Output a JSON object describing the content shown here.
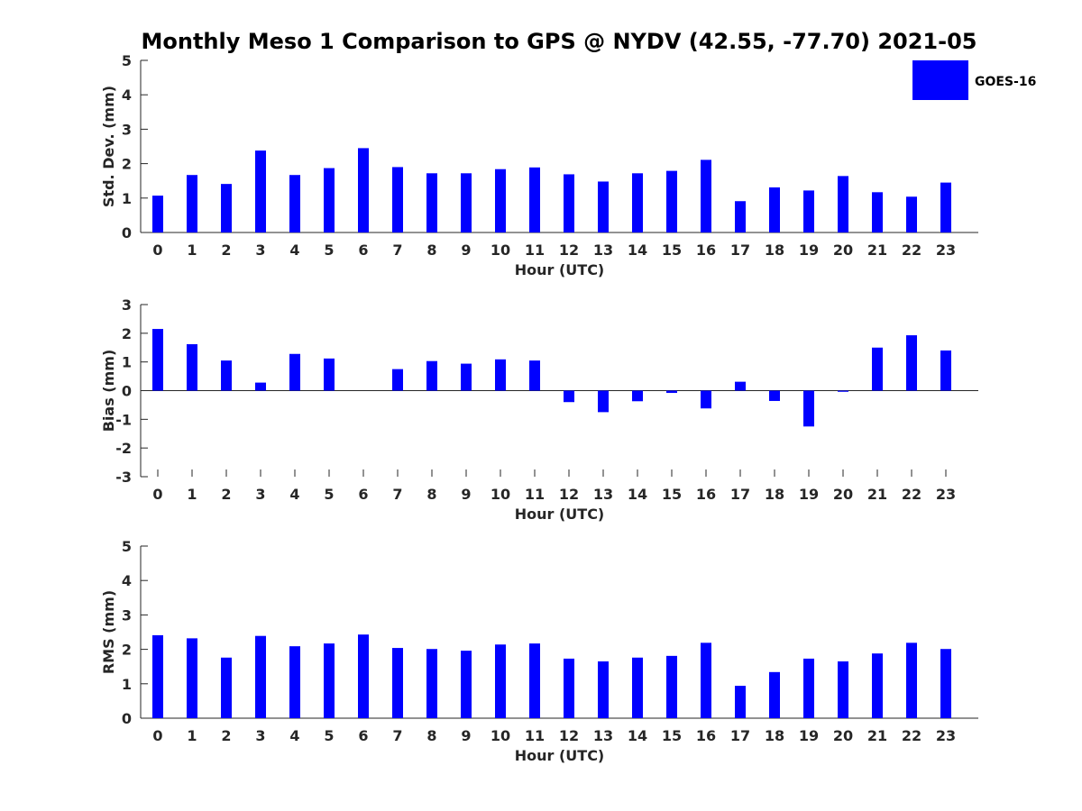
{
  "title": "Monthly Meso 1 Comparison to GPS @ NYDV (42.55, -77.70) 2021-05",
  "legend": {
    "label": "GOES-16",
    "color": "#0000ff"
  },
  "chart_data": [
    {
      "type": "bar",
      "xlabel": "Hour (UTC)",
      "ylabel": "Std. Dev. (mm)",
      "ylim": [
        0,
        5
      ],
      "yticks": [
        0,
        1,
        2,
        3,
        4,
        5
      ],
      "categories": [
        "0",
        "1",
        "2",
        "3",
        "4",
        "5",
        "6",
        "7",
        "8",
        "9",
        "10",
        "11",
        "12",
        "13",
        "14",
        "15",
        "16",
        "17",
        "18",
        "19",
        "20",
        "21",
        "22",
        "23"
      ],
      "series": [
        {
          "name": "GOES-16",
          "color": "#0000ff",
          "values": [
            1.07,
            1.67,
            1.41,
            2.38,
            1.67,
            1.87,
            2.45,
            1.9,
            1.72,
            1.72,
            1.84,
            1.89,
            1.69,
            1.48,
            1.72,
            1.79,
            2.11,
            0.91,
            1.31,
            1.22,
            1.64,
            1.17,
            1.04,
            1.45
          ]
        }
      ]
    },
    {
      "type": "bar",
      "xlabel": "Hour (UTC)",
      "ylabel": "Bias (mm)",
      "ylim": [
        -3,
        3
      ],
      "yticks": [
        -3,
        -2,
        -1,
        0,
        1,
        2,
        3
      ],
      "categories": [
        "0",
        "1",
        "2",
        "3",
        "4",
        "5",
        "6",
        "7",
        "8",
        "9",
        "10",
        "11",
        "12",
        "13",
        "14",
        "15",
        "16",
        "17",
        "18",
        "19",
        "20",
        "21",
        "22",
        "23"
      ],
      "series": [
        {
          "name": "GOES-16",
          "color": "#0000ff",
          "values": [
            2.15,
            1.62,
            1.05,
            0.28,
            1.28,
            1.12,
            0.0,
            0.75,
            1.03,
            0.94,
            1.09,
            1.05,
            -0.4,
            -0.75,
            -0.37,
            -0.08,
            -0.62,
            0.31,
            -0.36,
            -1.25,
            -0.04,
            1.5,
            1.93,
            1.4
          ]
        }
      ]
    },
    {
      "type": "bar",
      "xlabel": "Hour (UTC)",
      "ylabel": "RMS (mm)",
      "ylim": [
        0,
        5
      ],
      "yticks": [
        0,
        1,
        2,
        3,
        4,
        5
      ],
      "categories": [
        "0",
        "1",
        "2",
        "3",
        "4",
        "5",
        "6",
        "7",
        "8",
        "9",
        "10",
        "11",
        "12",
        "13",
        "14",
        "15",
        "16",
        "17",
        "18",
        "19",
        "20",
        "21",
        "22",
        "23"
      ],
      "series": [
        {
          "name": "GOES-16",
          "color": "#0000ff",
          "values": [
            2.41,
            2.32,
            1.76,
            2.39,
            2.09,
            2.17,
            2.43,
            2.04,
            2.01,
            1.96,
            2.14,
            2.17,
            1.73,
            1.65,
            1.76,
            1.81,
            2.19,
            0.94,
            1.34,
            1.73,
            1.65,
            1.88,
            2.19,
            2.01
          ]
        }
      ]
    }
  ]
}
